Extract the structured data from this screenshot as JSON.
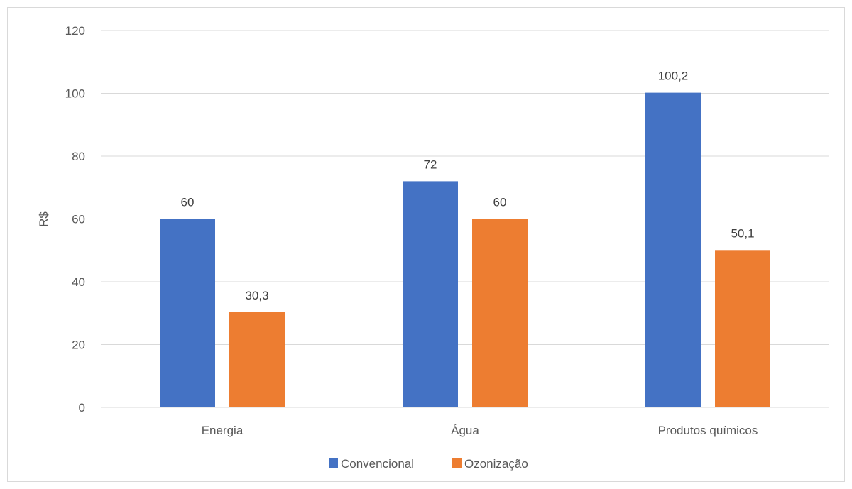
{
  "chart_data": {
    "type": "bar",
    "title": "",
    "xlabel": "",
    "ylabel": "R$",
    "categories": [
      "Energia",
      "Água",
      "Produtos químicos"
    ],
    "series": [
      {
        "name": "Convencional",
        "color": "#4472c4",
        "values": [
          60,
          72,
          100.2
        ],
        "labels": [
          "60",
          "72",
          "100,2"
        ]
      },
      {
        "name": "Ozonização",
        "color": "#ed7d31",
        "values": [
          30.3,
          60,
          50.1
        ],
        "labels": [
          "30,3",
          "60",
          "50,1"
        ]
      }
    ],
    "ylim": [
      0,
      120
    ],
    "yticks": [
      0,
      20,
      40,
      60,
      80,
      100,
      120
    ],
    "grid": true,
    "legend": "bottom"
  }
}
